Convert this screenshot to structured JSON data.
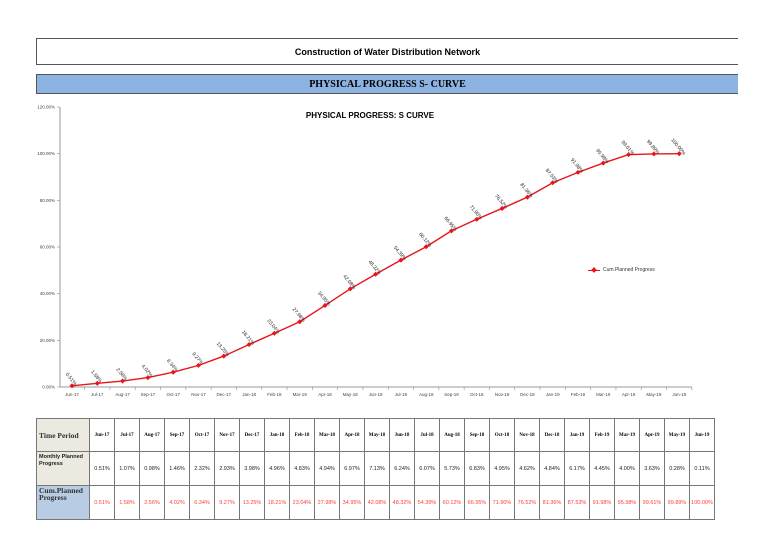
{
  "header": {
    "project_title": "Construction of Water Distribution Network",
    "banner": "PHYSICAL PROGRESS S- CURVE"
  },
  "chart_data": {
    "type": "line",
    "title": "PHYSICAL PROGRESS:  S CURVE",
    "xlabel": "",
    "ylabel": "",
    "ylim": [
      0,
      120
    ],
    "y_ticks": [
      "0.00%",
      "20.00%",
      "40.00%",
      "60.00%",
      "80.00%",
      "100.00%",
      "120.00%"
    ],
    "grid": false,
    "legend_position": "right",
    "categories": [
      "Jun-17",
      "Jul-17",
      "Aug-17",
      "Sep-17",
      "Oct-17",
      "Nov-17",
      "Dec-17",
      "Jan-18",
      "Feb-18",
      "Mar-18",
      "Apr-18",
      "May-18",
      "Jun-18",
      "Jul-18",
      "Aug-18",
      "Sep-18",
      "Oct-18",
      "Nov-18",
      "Dec-18",
      "Jan-19",
      "Feb-19",
      "Mar-19",
      "Apr-19",
      "May-19",
      "Jun-19"
    ],
    "series": [
      {
        "name": "Cum.Planned Progress",
        "color": "#e8141c",
        "values": [
          0.51,
          1.58,
          2.56,
          4.02,
          6.34,
          9.27,
          13.25,
          18.21,
          23.04,
          27.98,
          34.95,
          42.08,
          48.32,
          54.39,
          60.12,
          66.95,
          71.9,
          76.52,
          81.36,
          87.53,
          91.98,
          95.98,
          99.61,
          99.89,
          100.0
        ],
        "labels": [
          "0.51%",
          "1.58%",
          "2.56%",
          "4.02%",
          "6.34%",
          "9.27%",
          "13.25%",
          "18.21%",
          "23.04%",
          "27.98%",
          "34.95%",
          "42.08%",
          "48.32%",
          "54.39%",
          "60.12%",
          "66.95%",
          "71.90%",
          "76.52%",
          "81.36%",
          "87.53%",
          "91.98%",
          "95.98%",
          "99.61%",
          "99.89%",
          "100.00%"
        ]
      }
    ]
  },
  "table": {
    "row_headers": [
      "Time Period",
      "Monthly Planned Progress",
      "Cum.Planned Progress"
    ],
    "months": [
      "Jun-17",
      "Jul-17",
      "Aug-17",
      "Sep-17",
      "Oct-17",
      "Nov-17",
      "Dec-17",
      "Jan-18",
      "Feb-18",
      "Mar-18",
      "Apr-18",
      "May-18",
      "Jun-18",
      "Jul-18",
      "Aug-18",
      "Sep-18",
      "Oct-18",
      "Nov-18",
      "Dec-18",
      "Jan-19",
      "Feb-19",
      "Mar-19",
      "Apr-19",
      "May-19",
      "Jun-19"
    ],
    "monthly": [
      "0.51%",
      "1.07%",
      "0.98%",
      "1.46%",
      "2.32%",
      "2.93%",
      "3.98%",
      "4.96%",
      "4.83%",
      "4.94%",
      "6.97%",
      "7.13%",
      "6.24%",
      "6.07%",
      "5.73%",
      "6.83%",
      "4.95%",
      "4.62%",
      "4.84%",
      "6.17%",
      "4.45%",
      "4.00%",
      "3.63%",
      "0.28%",
      "0.11%"
    ],
    "cumulative": [
      "0.51%",
      "1.58%",
      "2.56%",
      "4.02%",
      "6.34%",
      "9.27%",
      "13.25%",
      "18.21%",
      "23.04%",
      "27.98%",
      "34.95%",
      "42.08%",
      "48.32%",
      "54.39%",
      "60.12%",
      "66.95%",
      "71.90%",
      "76.52%",
      "81.36%",
      "87.53%",
      "91.98%",
      "95.98%",
      "99.61%",
      "99.89%",
      "100.00%"
    ]
  }
}
